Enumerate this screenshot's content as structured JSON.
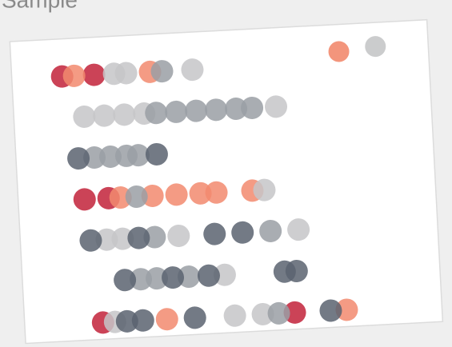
{
  "chart_data": {
    "type": "scatter",
    "title": "Sample",
    "xlim": [
      0,
      450
    ],
    "ylim": [
      0,
      6
    ],
    "series": [
      {
        "color": "#c22239",
        "x": [
          65,
          105,
          85,
          115,
          100,
          340
        ],
        "y": [
          0,
          0,
          3,
          3,
          6,
          6
        ]
      },
      {
        "color": "#f2896e",
        "x": [
          80,
          175,
          130,
          170,
          200,
          230,
          250,
          295,
          180,
          405
        ],
        "y": [
          0,
          0,
          3,
          3,
          3,
          3,
          3,
          3,
          6,
          6
        ]
      },
      {
        "color": "#c5c6c8",
        "x": [
          130,
          145,
          228,
          90,
          115,
          140,
          165,
          330,
          310,
          110,
          130,
          200,
          350,
          255,
          115,
          265,
          300
        ],
        "y": [
          0,
          0,
          0,
          1,
          1,
          1,
          1,
          1,
          3,
          4,
          4,
          4,
          4,
          5,
          6,
          6,
          6
        ]
      },
      {
        "color": "#9a9fa4",
        "x": [
          190,
          180,
          205,
          230,
          255,
          280,
          300,
          100,
          120,
          140,
          155,
          150,
          170,
          315,
          150,
          170,
          210,
          320
        ],
        "y": [
          0,
          1,
          1,
          1,
          1,
          1,
          1,
          2,
          2,
          2,
          2,
          3,
          4,
          4,
          5,
          5,
          5,
          6
        ]
      },
      {
        "color": "#5a6370",
        "x": [
          80,
          178,
          90,
          150,
          245,
          280,
          130,
          190,
          235,
          330,
          345,
          130,
          150,
          215,
          385
        ],
        "y": [
          2,
          2,
          4,
          4,
          4,
          4,
          5,
          5,
          5,
          5,
          5,
          6,
          6,
          6,
          6
        ]
      }
    ]
  }
}
